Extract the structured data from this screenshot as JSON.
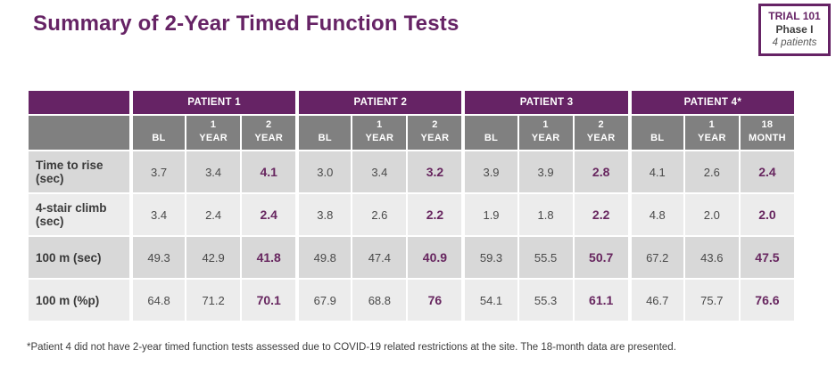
{
  "title": "Summary of 2-Year Timed Function Tests",
  "badge": {
    "trial": "TRIAL 101",
    "phase": "Phase I",
    "patients": "4 patients"
  },
  "colors": {
    "accent_purple": "#662365",
    "subheader_gray": "#808080",
    "row_dark": "#d8d8d8",
    "row_light": "#ececec",
    "highlight_value": "#67265f"
  },
  "table": {
    "groups": [
      {
        "label": "PATIENT 1",
        "subcols": [
          "BL",
          "1 YEAR",
          "2 YEAR"
        ]
      },
      {
        "label": "PATIENT 2",
        "subcols": [
          "BL",
          "1 YEAR",
          "2 YEAR"
        ]
      },
      {
        "label": "PATIENT 3",
        "subcols": [
          "BL",
          "1 YEAR",
          "2 YEAR"
        ]
      },
      {
        "label": "PATIENT 4*",
        "subcols": [
          "BL",
          "1 YEAR",
          "18 MONTH"
        ]
      }
    ],
    "rows": [
      {
        "label": "Time to rise (sec)",
        "values": [
          "3.7",
          "3.4",
          "4.1",
          "3.0",
          "3.4",
          "3.2",
          "3.9",
          "3.9",
          "2.8",
          "4.1",
          "2.6",
          "2.4"
        ]
      },
      {
        "label": "4-stair climb (sec)",
        "values": [
          "3.4",
          "2.4",
          "2.4",
          "3.8",
          "2.6",
          "2.2",
          "1.9",
          "1.8",
          "2.2",
          "4.8",
          "2.0",
          "2.0"
        ]
      },
      {
        "label": "100 m (sec)",
        "values": [
          "49.3",
          "42.9",
          "41.8",
          "49.8",
          "47.4",
          "40.9",
          "59.3",
          "55.5",
          "50.7",
          "67.2",
          "43.6",
          "47.5"
        ]
      },
      {
        "label": "100 m (%p)",
        "values": [
          "64.8",
          "71.2",
          "70.1",
          "67.9",
          "68.8",
          "76",
          "54.1",
          "55.3",
          "61.1",
          "46.7",
          "75.7",
          "76.6"
        ]
      }
    ],
    "highlight_columns": [
      2,
      5,
      8,
      11
    ]
  },
  "footnote": "*Patient 4 did not have 2-year timed function tests assessed due to COVID-19 related restrictions at the site. The 18-month data are presented."
}
